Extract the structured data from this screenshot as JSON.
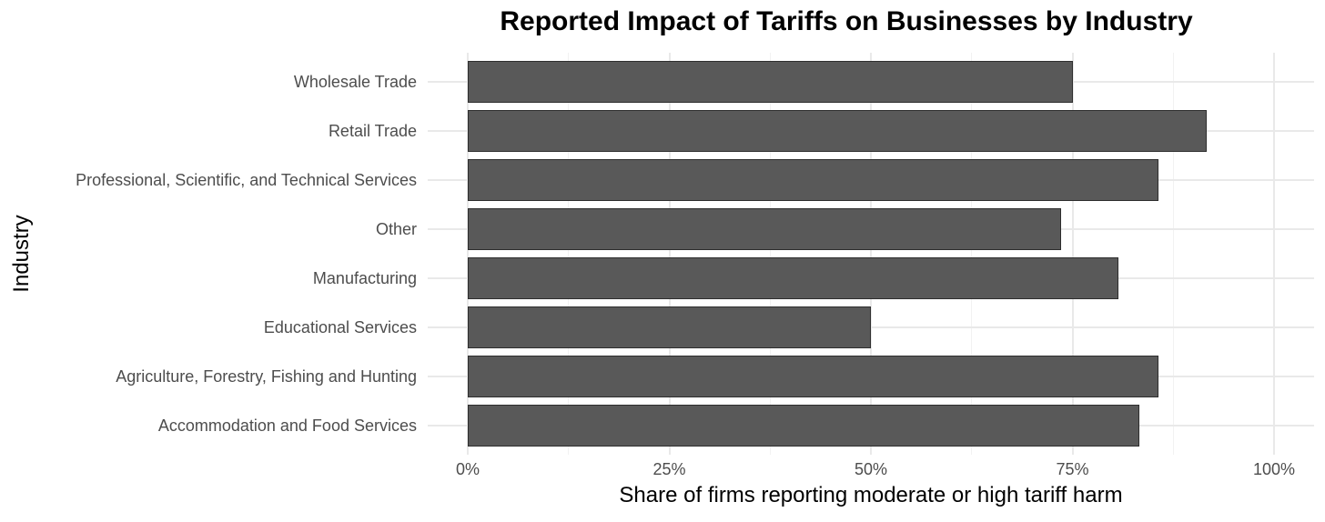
{
  "chart_data": {
    "type": "bar",
    "orientation": "horizontal",
    "title": "Reported Impact of Tariffs on Businesses by Industry",
    "xlabel": "Share of firms reporting moderate or high tariff harm",
    "ylabel": "Industry",
    "categories": [
      "Wholesale Trade",
      "Retail Trade",
      "Professional, Scientific, and Technical Services",
      "Other",
      "Manufacturing",
      "Educational Services",
      "Agriculture, Forestry, Fishing and Hunting",
      "Accommodation and Food Services"
    ],
    "values": [
      75.0,
      91.7,
      85.7,
      73.6,
      80.7,
      50.0,
      85.7,
      83.3
    ],
    "value_unit": "%",
    "xlim": [
      0,
      100
    ],
    "x_major_ticks": [
      0,
      25,
      50,
      75,
      100
    ],
    "x_tick_labels": [
      "0%",
      "25%",
      "50%",
      "75%",
      "100%"
    ],
    "x_minor_ticks": [
      12.5,
      37.5,
      62.5,
      87.5
    ],
    "grid": true,
    "legend": false,
    "colors": {
      "bar_fill": "#595959",
      "bar_border": "#2e2e2e",
      "grid_major": "#e9e9e9",
      "grid_minor": "#f2f2f2",
      "axis_text": "#4d4d4d",
      "title_text": "#000000",
      "background": "#ffffff"
    }
  }
}
